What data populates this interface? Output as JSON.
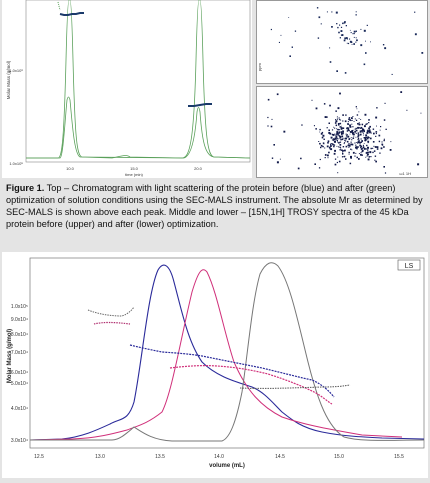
{
  "figure": {
    "caption_label": "Figure 1.",
    "caption_text": " Top – Chromatogram with light scattering of the protein before (blue) and after (green) optimization of solution conditions using the SEC-MALS instrument. The absolute Mr as determined by SEC-MALS is shown above each peak. Middle and lower – [15N,1H] TROSY spectra of the 45 kDa protein before (upper) and after (lower) optimization."
  },
  "top_chart": {
    "ylabel": "Molar Mass (g/mol)",
    "xlabel": "time (min)",
    "y_ticks": [
      "1.0x10⁶",
      "1.0x10⁵"
    ],
    "x_ticks": [
      "10.0",
      "15.0",
      "20.0"
    ]
  },
  "nmr": {
    "upper_axis_label": "ppm",
    "lower_axis_label": "ω1 1H"
  },
  "chart_data": {
    "type": "line",
    "legend": "LS",
    "xlabel": "volume (mL)",
    "ylabel": "Molar Mass (g/mol)",
    "x_ticks": [
      "12.5",
      "13.0",
      "13.5",
      "14.0",
      "14.5",
      "15.0",
      "15.5"
    ],
    "y_ticks": [
      "1.0x10⁵",
      "9.0x10⁴",
      "8.0x10⁴",
      "7.0x10⁴",
      "6.0x10⁴",
      "5.0x10⁴",
      "4.0x10⁴",
      "3.0x10⁴"
    ],
    "xlim": [
      12.45,
      15.6
    ],
    "colors": {
      "blue": "#2a2a9a",
      "pink": "#d0307a",
      "gray": "#777777",
      "dotted": "#7a2a5a"
    }
  }
}
